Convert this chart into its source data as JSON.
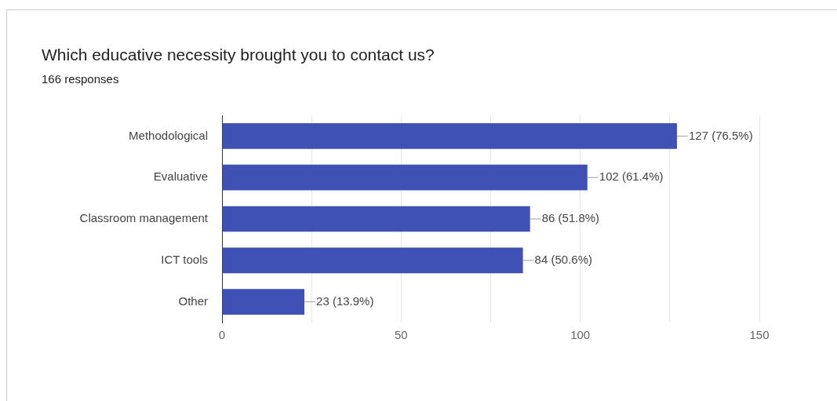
{
  "chart_data": {
    "type": "bar",
    "orientation": "horizontal",
    "title": "Which educative necessity brought you to contact us?",
    "subtitle": "166 responses",
    "categories": [
      "Methodological",
      "Evaluative",
      "Classroom management",
      "ICT tools",
      "Other"
    ],
    "values": [
      127,
      102,
      86,
      84,
      23
    ],
    "color": "#3f51b5",
    "value_labels": [
      "127 (76.5%)",
      "102 (61.4%)",
      "86 (51.8%)",
      "84 (50.6%)",
      "23 (13.9%)"
    ],
    "xlim": [
      0,
      150
    ],
    "xticks": [
      0,
      {
        "value": 25,
        "label": null
      },
      50,
      {
        "value": 75,
        "label": null
      },
      100,
      {
        "value": 125,
        "label": null
      },
      150
    ],
    "grid": "x",
    "legend": false
  }
}
